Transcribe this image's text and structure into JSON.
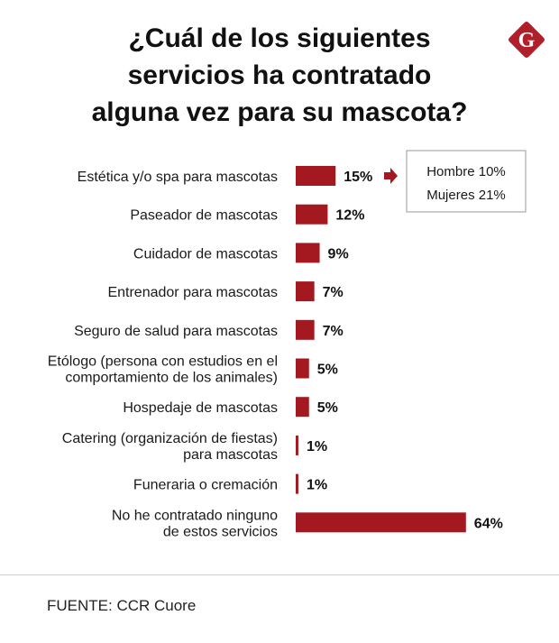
{
  "colors": {
    "bar": "#a3191f",
    "logo": "#b0202a",
    "text": "#1a1a1a",
    "callout_border": "#9a9a9a"
  },
  "logo": {
    "letter": "G"
  },
  "source": "FUENTE: CCR Cuore",
  "chart_data": {
    "type": "bar",
    "orientation": "horizontal",
    "title": "¿Cuál de los siguientes servicios ha contratado alguna vez para su mascota?",
    "title_lines": [
      "¿Cuál de los siguientes",
      "servicios ha contratado",
      "alguna vez para su mascota?"
    ],
    "categories": [
      [
        "Estética y/o spa para mascotas"
      ],
      [
        "Paseador de mascotas"
      ],
      [
        "Cuidador de mascotas"
      ],
      [
        "Entrenador para mascotas"
      ],
      [
        "Seguro de salud para mascotas"
      ],
      [
        "Etólogo (persona con estudios en el",
        "comportamiento de los animales)"
      ],
      [
        "Hospedaje de mascotas"
      ],
      [
        "Catering (organización de fiestas)",
        "para mascotas"
      ],
      [
        "Funeraria o cremación"
      ],
      [
        "No he contratado ninguno",
        "de estos servicios"
      ]
    ],
    "values": [
      15,
      12,
      9,
      7,
      7,
      5,
      5,
      1,
      1,
      64
    ],
    "value_labels": [
      "15%",
      "12%",
      "9%",
      "7%",
      "7%",
      "5%",
      "5%",
      "1%",
      "1%",
      "64%"
    ],
    "callout": {
      "row": 0,
      "lines": [
        "Hombre 10%",
        "Mujeres 21%"
      ]
    },
    "grid": false,
    "legend": "none"
  }
}
